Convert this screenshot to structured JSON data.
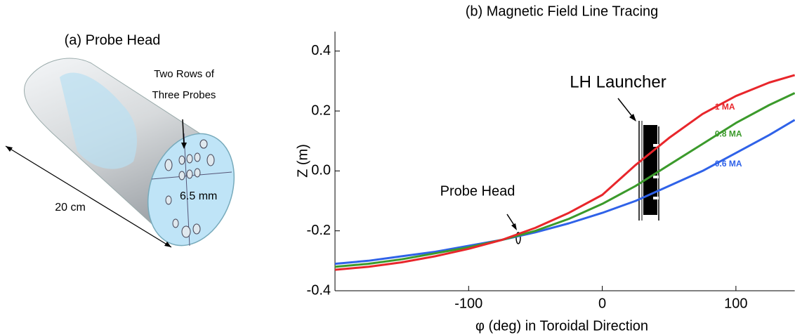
{
  "panel_a": {
    "title": "(a) Probe Head",
    "probes_label": [
      "Two Rows of",
      "Three Probes"
    ],
    "spacing_label": "6.5 mm",
    "length_label": "20 cm"
  },
  "chart_data": {
    "type": "line",
    "title": "(b) Magnetic Field Line Tracing",
    "x_label": "φ (deg) in Toroidal Direction",
    "y_label": "Z (m)",
    "annotations": [
      "LH Launcher",
      "Probe Head"
    ],
    "x": [
      -200,
      -175,
      -150,
      -125,
      -100,
      -75,
      -50,
      -25,
      0,
      25,
      50,
      75,
      100,
      125,
      144
    ],
    "series": [
      {
        "name": "1 MA",
        "color": "#e8262b",
        "values": [
          -0.33,
          -0.32,
          -0.305,
          -0.285,
          -0.26,
          -0.23,
          -0.19,
          -0.14,
          -0.08,
          0.02,
          0.11,
          0.19,
          0.25,
          0.295,
          0.32
        ]
      },
      {
        "name": "0.8 MA",
        "color": "#3b9a2b",
        "values": [
          -0.32,
          -0.31,
          -0.295,
          -0.275,
          -0.255,
          -0.23,
          -0.2,
          -0.16,
          -0.11,
          -0.05,
          0.02,
          0.09,
          0.16,
          0.22,
          0.26
        ]
      },
      {
        "name": "0.6 MA",
        "color": "#2f62e8",
        "values": [
          -0.31,
          -0.3,
          -0.285,
          -0.27,
          -0.25,
          -0.23,
          -0.205,
          -0.175,
          -0.14,
          -0.1,
          -0.05,
          0.0,
          0.06,
          0.12,
          0.17
        ]
      }
    ],
    "xlim": [
      -200,
      144
    ],
    "ylim": [
      -0.4,
      0.465
    ],
    "xticks": [
      -100,
      0,
      100
    ],
    "yticks": [
      -0.4,
      -0.2,
      {
        "value": 0,
        "label": "0.0"
      },
      0.2,
      0.4
    ]
  }
}
